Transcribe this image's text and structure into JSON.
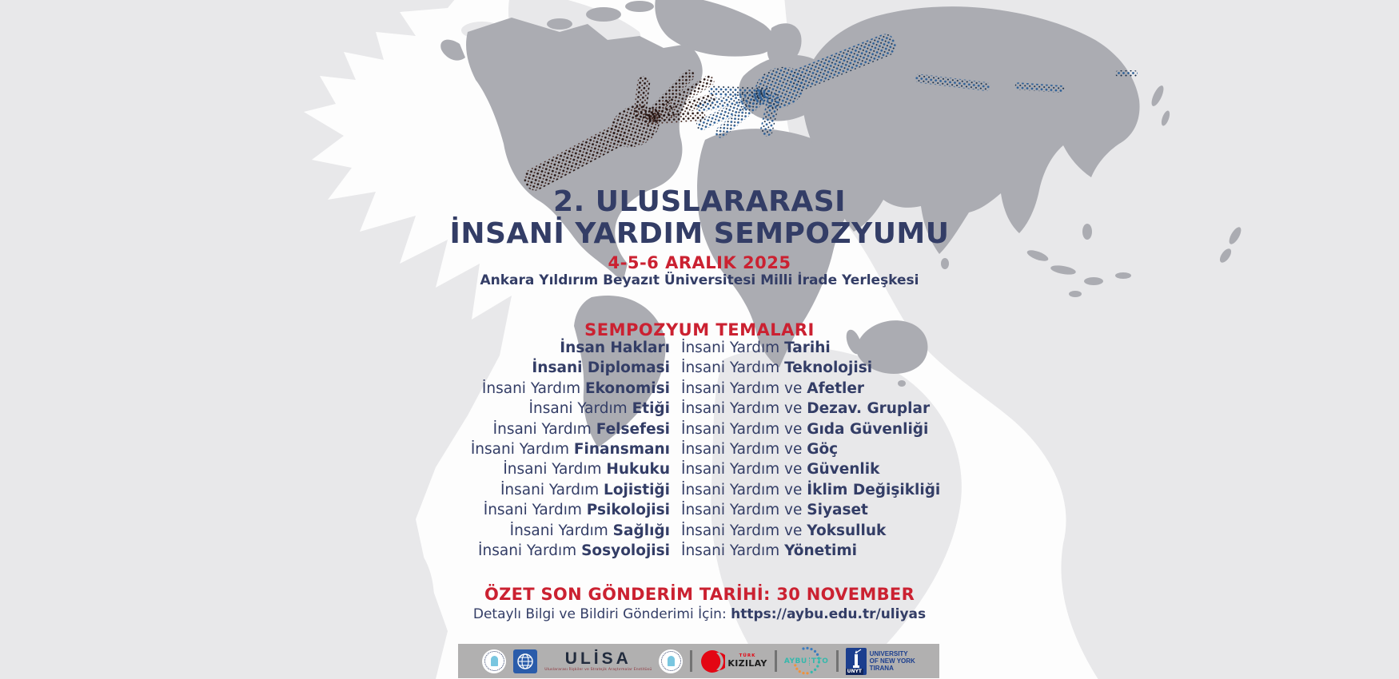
{
  "poster": {
    "title_line1": "2. ULUSLARARASI",
    "title_line2": "İNSANİ YARDIM SEMPOZYUMU",
    "date": "4-5-6 ARALIK 2025",
    "venue": "Ankara Yıldırım Beyazıt Üniversitesi Milli İrade Yerleşkesi",
    "themes_heading": "SEMPOZYUM TEMALARI",
    "themes": {
      "rows": [
        {
          "left": {
            "pre": "",
            "bold": "İnsan Hakları"
          },
          "right": {
            "pre": "İnsani Yardım ",
            "bold": "Tarihi"
          }
        },
        {
          "left": {
            "pre": "",
            "bold": "İnsani Diplomasi"
          },
          "right": {
            "pre": "İnsani Yardım ",
            "bold": "Teknolojisi"
          }
        },
        {
          "left": {
            "pre": "İnsani Yardım ",
            "bold": "Ekonomisi"
          },
          "right": {
            "pre": "İnsani Yardım ve ",
            "bold": "Afetler"
          }
        },
        {
          "left": {
            "pre": "İnsani Yardım ",
            "bold": "Etiği"
          },
          "right": {
            "pre": "İnsani Yardım ve ",
            "bold": "Dezav. Gruplar"
          }
        },
        {
          "left": {
            "pre": "İnsani Yardım ",
            "bold": "Felsefesi"
          },
          "right": {
            "pre": "İnsani Yardım ve ",
            "bold": "Gıda Güvenliği"
          }
        },
        {
          "left": {
            "pre": "İnsani Yardım ",
            "bold": "Finansmanı"
          },
          "right": {
            "pre": "İnsani Yardım ve ",
            "bold": "Göç"
          }
        },
        {
          "left": {
            "pre": "İnsani Yardım ",
            "bold": "Hukuku"
          },
          "right": {
            "pre": "İnsani Yardım ve ",
            "bold": "Güvenlik"
          }
        },
        {
          "left": {
            "pre": "İnsani Yardım ",
            "bold": "Lojistiği"
          },
          "right": {
            "pre": "İnsani Yardım ve ",
            "bold": "İklim Değişikliği"
          }
        },
        {
          "left": {
            "pre": "İnsani Yardım ",
            "bold": "Psikolojisi"
          },
          "right": {
            "pre": "İnsani Yardım ve ",
            "bold": "Siyaset"
          }
        },
        {
          "left": {
            "pre": "İnsani Yardım ",
            "bold": "Sağlığı"
          },
          "right": {
            "pre": "İnsani Yardım ve ",
            "bold": "Yoksulluk"
          }
        },
        {
          "left": {
            "pre": "İnsani Yardım ",
            "bold": "Sosyolojisi"
          },
          "right": {
            "pre": "İnsani Yardım ",
            "bold": "Yönetimi"
          }
        }
      ]
    },
    "deadline": "ÖZET SON GÖNDERİM TARİHİ: 30 NOVEMBER",
    "info_prefix": "Detaylı Bilgi ve Bildiri Gönderimi İçin: ",
    "info_url": "https://aybu.edu.tr/uliyas"
  },
  "footer": {
    "ulisa": {
      "name": "ULİSA",
      "subtitle": "Uluslararası İlişkiler ve Stratejik Araştırmalar Enstitüsü"
    },
    "kizilay": {
      "line1": "TÜRK",
      "line2": "KIZILAY"
    },
    "aybu_tto": {
      "left": "AYBU",
      "right": "TTO"
    },
    "unyt": {
      "abbr": "UNYT",
      "line1": "UNIVERSITY",
      "line2": "OF NEW YORK",
      "line3": "TIRANA"
    }
  },
  "colors": {
    "navy": "#333d66",
    "red": "#cb2131",
    "map_light": "#e8e8ea",
    "map_mid": "#abacb2",
    "footer_bar": "#b1b0b0",
    "hand_dark": "#241310",
    "hand_blue": "#2d5f96"
  }
}
